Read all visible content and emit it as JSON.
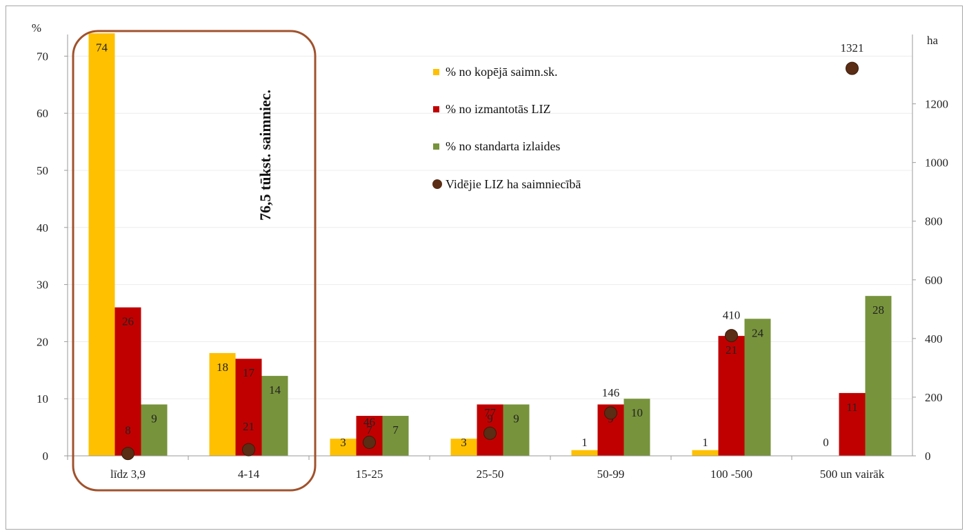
{
  "chart_data": {
    "type": "bar",
    "categories": [
      "līdz 3,9",
      "4-14",
      "15-25",
      "25-50",
      "50-99",
      "100 -500",
      "500 un vairāk"
    ],
    "series": [
      {
        "name": "% no kopējā saimn.sk.",
        "values": [
          74,
          18,
          3,
          3,
          1,
          1,
          0
        ],
        "labels": [
          "74",
          "18",
          "3",
          "3",
          "1",
          "1",
          "0"
        ],
        "color": "#FFC000"
      },
      {
        "name": "% no izmantotās LIZ",
        "values": [
          26,
          17,
          7,
          9,
          9,
          21,
          11
        ],
        "labels": [
          "26",
          "17",
          "7",
          "9",
          "9",
          "21",
          "11"
        ],
        "color": "#C00000"
      },
      {
        "name": "% no standarta izlaides",
        "values": [
          9,
          14,
          7,
          9,
          10,
          24,
          28
        ],
        "labels": [
          "9",
          "14",
          "7",
          "9",
          "10",
          "24",
          "28"
        ],
        "color": "#77933C"
      }
    ],
    "secondary_series": {
      "name": "Vidējie LIZ ha saimniecībā",
      "values": [
        8,
        21,
        46,
        77,
        146,
        410,
        1321
      ],
      "labels": [
        "8",
        "21",
        "46",
        "77",
        "146",
        "410",
        "1321"
      ],
      "color": "#5A2D14",
      "axis": "right"
    },
    "ylabel": "%",
    "ylim": [
      0,
      75
    ],
    "yticks": [
      0,
      10,
      20,
      30,
      40,
      50,
      60,
      70
    ],
    "y2label": "ha",
    "y2lim": [
      0,
      1300
    ],
    "y2ticks": [
      0,
      200,
      400,
      600,
      800,
      1000,
      1200
    ],
    "annotation": "76,5 tūkst. saimniec.",
    "legend_position": "center-top",
    "grid": true
  }
}
